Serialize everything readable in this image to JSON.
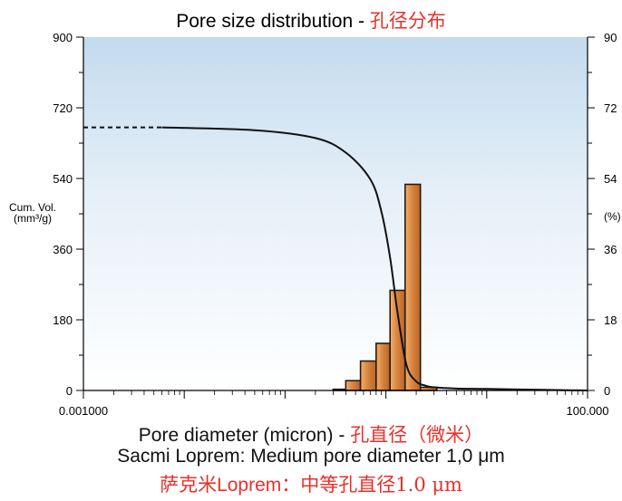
{
  "title": {
    "en": "Pore size distribution - ",
    "cn": "孔径分布",
    "cn_color": "#e8302a"
  },
  "y_left_label": {
    "line1": "Cum. Vol.",
    "line2": "(mm³/g)"
  },
  "y_right_label": "(%)",
  "x_label": {
    "en": "Pore diameter (micron) - ",
    "cn": "孔直径（微米）"
  },
  "caption_en": "Sacmi Loprem: Medium pore diameter 1,0 μm",
  "caption_cn": {
    "part1": "萨克米",
    "part2": "Loprem",
    "part3": "：中等孔直径1.0 μm"
  },
  "chart_data": {
    "type": "bar",
    "title": "Pore size distribution - 孔径分布",
    "xlabel": "Pore diameter (micron)",
    "ylabel": "Cum. Vol. (mm3/g)",
    "y2label": "(%)",
    "x_scale": "log",
    "xlim": [
      0.001,
      100
    ],
    "ylim": [
      0,
      900
    ],
    "y2lim": [
      0,
      90
    ],
    "x_tick_labels": [
      "0.001000",
      "100.000"
    ],
    "y_ticks": [
      0,
      180,
      360,
      540,
      720,
      900
    ],
    "y2_ticks": [
      0,
      18,
      36,
      54,
      72,
      90
    ],
    "y2_tick_labels": [
      "0",
      "18",
      "36",
      "54",
      "72",
      "90"
    ],
    "grid": false,
    "background": "sky gradient",
    "bars": {
      "color": "#d9863f",
      "edges": [
        0.3,
        0.4,
        0.56,
        0.8,
        1.1,
        1.55,
        2.2,
        3.2
      ],
      "values": [
        3,
        25,
        75,
        120,
        255,
        525,
        8
      ]
    },
    "cumulative_curve": {
      "color": "#111111",
      "dashed_until_x": 0.006,
      "x": [
        0.001,
        0.006,
        0.05,
        0.2,
        0.4,
        0.7,
        0.9,
        1.1,
        1.3,
        1.6,
        2.0,
        2.5,
        3.0,
        5.0,
        10,
        30,
        100
      ],
      "y": [
        67,
        67,
        66.3,
        64.3,
        60.6,
        53.8,
        45.7,
        33.9,
        20.1,
        6.5,
        2.3,
        1.2,
        0.8,
        0.5,
        0.4,
        0.2,
        0.0
      ]
    }
  }
}
